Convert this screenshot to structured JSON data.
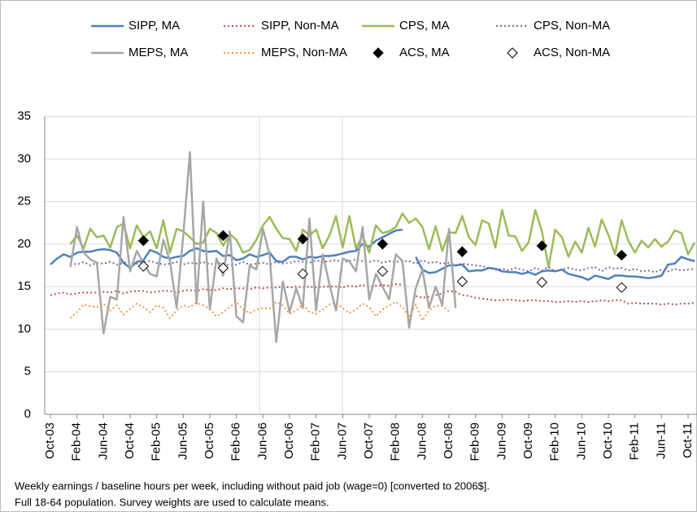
{
  "chart_data": {
    "type": "line",
    "categories": [
      "Oct-03",
      null,
      null,
      null,
      "Feb-04",
      null,
      null,
      null,
      "Jun-04",
      null,
      null,
      null,
      "Oct-04",
      null,
      null,
      null,
      "Feb-05",
      null,
      null,
      null,
      "Jun-05",
      null,
      null,
      null,
      "Oct-05",
      null,
      null,
      null,
      "Feb-06",
      null,
      null,
      null,
      "Jun-06",
      null,
      null,
      null,
      "Oct-06",
      null,
      null,
      null,
      "Feb-07",
      null,
      null,
      null,
      "Jun-07",
      null,
      null,
      null,
      "Oct-07",
      null,
      null,
      null,
      "Feb-08",
      null,
      null,
      null,
      "Jun-08",
      null,
      null,
      null,
      "Oct-08",
      null,
      null,
      null,
      "Feb-09",
      null,
      null,
      null,
      "Jun-09",
      null,
      null,
      null,
      "Oct-09",
      null,
      null,
      null,
      "Feb-10",
      null,
      null,
      null,
      "Jun-10",
      null,
      null,
      null,
      "Oct-10",
      null,
      null,
      null,
      "Feb-11",
      null,
      null,
      null,
      "Jun-11",
      null,
      null,
      null,
      "Oct-11",
      null
    ],
    "series": [
      {
        "name": "SIPP, MA",
        "color": "#4f81bd",
        "style": "solid",
        "values": [
          17.6,
          18.3,
          18.8,
          18.5,
          19.0,
          19.1,
          19.1,
          19.3,
          19.4,
          19.3,
          19.0,
          17.8,
          17.2,
          17.9,
          18.1,
          19.3,
          19.0,
          18.5,
          18.3,
          18.5,
          18.6,
          19.2,
          19.5,
          19.2,
          19.1,
          19.2,
          18.6,
          18.7,
          18.1,
          18.3,
          18.8,
          18.5,
          18.7,
          19.0,
          18.0,
          17.9,
          18.5,
          18.5,
          18.2,
          18.5,
          18.4,
          18.6,
          18.6,
          18.7,
          18.9,
          19.1,
          19.2,
          20.0,
          19.7,
          20.4,
          20.8,
          21.2,
          21.6,
          21.7,
          null,
          18.5,
          17.0,
          16.6,
          16.7,
          17.1,
          17.5,
          17.5,
          17.6,
          16.8,
          16.9,
          16.9,
          17.2,
          17.1,
          16.8,
          16.7,
          16.7,
          16.5,
          16.7,
          16.4,
          16.8,
          16.9,
          16.8,
          17.0,
          16.5,
          16.3,
          16.1,
          15.8,
          16.3,
          16.1,
          15.9,
          16.3,
          16.3,
          16.2,
          16.2,
          16.1,
          16.0,
          16.1,
          16.3,
          17.6,
          17.7,
          18.5,
          18.2,
          18.0
        ]
      },
      {
        "name": "SIPP, Non-MA",
        "color": "#c0504d",
        "style": "dotted",
        "values": [
          14.0,
          14.2,
          14.3,
          14.1,
          14.2,
          14.3,
          14.3,
          14.3,
          14.4,
          14.3,
          14.5,
          14.2,
          14.4,
          14.5,
          14.5,
          14.3,
          14.4,
          14.5,
          14.5,
          14.3,
          14.5,
          14.6,
          14.5,
          14.7,
          14.6,
          14.6,
          14.8,
          14.7,
          14.8,
          14.8,
          14.7,
          14.9,
          14.8,
          14.9,
          14.9,
          15.0,
          14.9,
          15.0,
          14.9,
          15.0,
          14.9,
          15.0,
          15.0,
          15.0,
          14.9,
          15.1,
          15.0,
          15.2,
          15.0,
          15.1,
          15.2,
          15.1,
          15.3,
          15.2,
          null,
          13.9,
          13.7,
          13.8,
          14.0,
          14.2,
          14.5,
          14.4,
          14.0,
          13.9,
          13.7,
          13.6,
          13.5,
          13.4,
          13.4,
          13.5,
          13.4,
          13.3,
          13.4,
          13.4,
          13.3,
          13.3,
          13.2,
          13.2,
          13.3,
          13.2,
          13.3,
          13.2,
          13.3,
          13.4,
          13.3,
          13.4,
          13.4,
          13.0,
          13.1,
          13.0,
          13.0,
          13.0,
          12.9,
          13.0,
          12.9,
          13.0,
          13.0,
          13.1
        ]
      },
      {
        "name": "CPS, MA",
        "color": "#9bbb59",
        "style": "solid",
        "values": [
          null,
          null,
          null,
          20.0,
          21.0,
          19.5,
          21.8,
          20.8,
          21.0,
          19.6,
          22.0,
          22.4,
          19.5,
          22.2,
          20.8,
          21.5,
          19.5,
          22.8,
          19.0,
          21.8,
          21.5,
          20.8,
          20.0,
          20.2,
          21.8,
          21.3,
          19.8,
          21.2,
          20.5,
          19.0,
          19.3,
          20.5,
          22.2,
          23.2,
          21.8,
          20.7,
          20.6,
          19.2,
          21.7,
          21.0,
          21.7,
          19.5,
          21.0,
          23.3,
          19.6,
          23.3,
          19.5,
          21.0,
          19.0,
          22.2,
          21.3,
          21.5,
          22.0,
          23.6,
          22.5,
          23.0,
          22.0,
          19.4,
          22.1,
          19.2,
          21.4,
          21.3,
          23.3,
          20.8,
          19.9,
          22.8,
          22.4,
          19.6,
          24.0,
          21.0,
          20.9,
          19.2,
          20.2,
          24.0,
          21.5,
          17.3,
          21.7,
          20.8,
          18.5,
          20.3,
          19.0,
          21.9,
          19.7,
          22.9,
          21.1,
          18.8,
          22.8,
          20.4,
          19.0,
          20.4,
          19.6,
          20.6,
          19.7,
          20.3,
          21.6,
          21.3,
          18.8,
          20.2
        ]
      },
      {
        "name": "CPS, Non-MA",
        "color": "#8064a2",
        "style": "dotted",
        "values": [
          null,
          null,
          null,
          17.8,
          17.6,
          17.9,
          17.5,
          17.8,
          17.7,
          17.9,
          17.6,
          17.8,
          17.9,
          17.7,
          17.9,
          18.0,
          17.8,
          17.6,
          17.7,
          17.9,
          17.6,
          17.8,
          17.7,
          17.9,
          17.6,
          17.8,
          17.7,
          17.5,
          17.6,
          17.9,
          17.6,
          17.7,
          17.8,
          17.6,
          17.9,
          17.7,
          17.8,
          18.0,
          17.9,
          17.8,
          18.1,
          17.9,
          18.0,
          18.1,
          17.9,
          18.0,
          18.2,
          18.0,
          17.9,
          18.1,
          17.8,
          18.0,
          17.9,
          18.0,
          18.0,
          17.7,
          18.1,
          17.8,
          17.9,
          17.7,
          17.8,
          17.5,
          17.7,
          17.6,
          17.5,
          17.4,
          17.2,
          17.0,
          17.1,
          16.9,
          17.2,
          17.0,
          16.8,
          17.2,
          16.9,
          17.3,
          16.8,
          17.0,
          17.2,
          17.0,
          16.9,
          17.2,
          17.3,
          16.8,
          17.3,
          17.1,
          17.2,
          16.9,
          17.1,
          16.8,
          16.9,
          16.7,
          17.0,
          16.8,
          17.1,
          16.9,
          17.0,
          17.1
        ]
      },
      {
        "name": "MEPS, MA",
        "color": "#a6a6a6",
        "style": "solid",
        "values": [
          null,
          null,
          null,
          17.3,
          22.0,
          19.0,
          18.2,
          17.8,
          9.5,
          13.8,
          13.5,
          23.2,
          16.8,
          19.2,
          17.8,
          16.5,
          16.2,
          20.5,
          18.0,
          12.5,
          21.0,
          30.8,
          13.0,
          25.0,
          12.3,
          18.3,
          16.3,
          21.5,
          11.5,
          10.8,
          17.5,
          17.0,
          21.8,
          18.7,
          8.5,
          15.6,
          12.0,
          14.8,
          12.5,
          23.0,
          12.2,
          18.8,
          15.3,
          12.2,
          18.3,
          18.0,
          16.8,
          22.0,
          13.5,
          16.5,
          15.0,
          13.5,
          18.8,
          18.0,
          10.2,
          14.8,
          17.0,
          12.5,
          15.0,
          12.8,
          21.8,
          12.5,
          null,
          null,
          null,
          null,
          null,
          null,
          null,
          null,
          null,
          null,
          null,
          null,
          null,
          null,
          null,
          null,
          null,
          null,
          null,
          null,
          null,
          null,
          null,
          null,
          null,
          null,
          null,
          null,
          null,
          null,
          null,
          null,
          null,
          null,
          null,
          null
        ]
      },
      {
        "name": "MEPS, Non-MA",
        "color": "#f79646",
        "style": "dotted",
        "values": [
          null,
          null,
          null,
          11.3,
          12.0,
          12.9,
          12.7,
          12.6,
          13.0,
          12.2,
          12.8,
          11.7,
          12.4,
          13.0,
          12.6,
          12.0,
          12.8,
          12.5,
          11.3,
          12.2,
          12.8,
          12.6,
          13.1,
          12.8,
          12.4,
          11.5,
          12.0,
          12.6,
          13.2,
          12.3,
          11.9,
          12.3,
          12.5,
          12.4,
          13.2,
          12.8,
          11.8,
          12.2,
          12.9,
          12.0,
          11.8,
          12.3,
          12.9,
          13.1,
          12.5,
          11.9,
          12.3,
          13.0,
          12.6,
          11.5,
          12.3,
          12.8,
          13.2,
          12.6,
          11.4,
          12.9,
          11.0,
          12.2,
          12.8,
          12.7,
          12.1,
          null,
          null,
          null,
          null,
          null,
          null,
          null,
          null,
          null,
          null,
          null,
          null,
          null,
          null,
          null,
          null,
          null,
          null,
          null,
          null,
          null,
          null,
          null,
          null,
          null,
          null,
          null,
          null,
          null,
          null,
          null,
          null,
          null,
          null,
          null,
          null,
          null
        ]
      },
      {
        "name": "ACS, MA",
        "color": "#000000",
        "style": "diamond-filled",
        "values": [
          null,
          null,
          null,
          null,
          null,
          null,
          null,
          null,
          null,
          null,
          null,
          null,
          null,
          null,
          20.4,
          null,
          null,
          null,
          null,
          null,
          null,
          null,
          null,
          null,
          null,
          null,
          21.0,
          null,
          null,
          null,
          null,
          null,
          null,
          null,
          null,
          null,
          null,
          null,
          20.6,
          null,
          null,
          null,
          null,
          null,
          null,
          null,
          null,
          null,
          null,
          null,
          20.0,
          null,
          null,
          null,
          null,
          null,
          null,
          null,
          null,
          null,
          null,
          null,
          19.1,
          null,
          null,
          null,
          null,
          null,
          null,
          null,
          null,
          null,
          null,
          null,
          19.8,
          null,
          null,
          null,
          null,
          null,
          null,
          null,
          null,
          null,
          null,
          null,
          18.7,
          null,
          null,
          null,
          null,
          null,
          null,
          null,
          null,
          null,
          null,
          null
        ]
      },
      {
        "name": "ACS, Non-MA",
        "color": "#000000",
        "style": "diamond-open",
        "values": [
          null,
          null,
          null,
          null,
          null,
          null,
          null,
          null,
          null,
          null,
          null,
          null,
          null,
          null,
          17.4,
          null,
          null,
          null,
          null,
          null,
          null,
          null,
          null,
          null,
          null,
          null,
          17.2,
          null,
          null,
          null,
          null,
          null,
          null,
          null,
          null,
          null,
          null,
          null,
          16.5,
          null,
          null,
          null,
          null,
          null,
          null,
          null,
          null,
          null,
          null,
          null,
          16.8,
          null,
          null,
          null,
          null,
          null,
          null,
          null,
          null,
          null,
          null,
          null,
          15.6,
          null,
          null,
          null,
          null,
          null,
          null,
          null,
          null,
          null,
          null,
          null,
          15.5,
          null,
          null,
          null,
          null,
          null,
          null,
          null,
          null,
          null,
          null,
          null,
          14.9,
          null,
          null,
          null,
          null,
          null,
          null,
          null,
          null,
          null,
          null,
          null
        ]
      }
    ],
    "ylim": [
      0,
      35
    ],
    "yticks": [
      0,
      5,
      10,
      15,
      20,
      25,
      30,
      35
    ],
    "grid": true,
    "legend": "top",
    "notes": [
      "Weekly earnings / baseline hours per week, including without paid job (wage=0) [converted to 2006$].",
      "Full 18-64 population. Survey weights are used to calculate means."
    ]
  }
}
